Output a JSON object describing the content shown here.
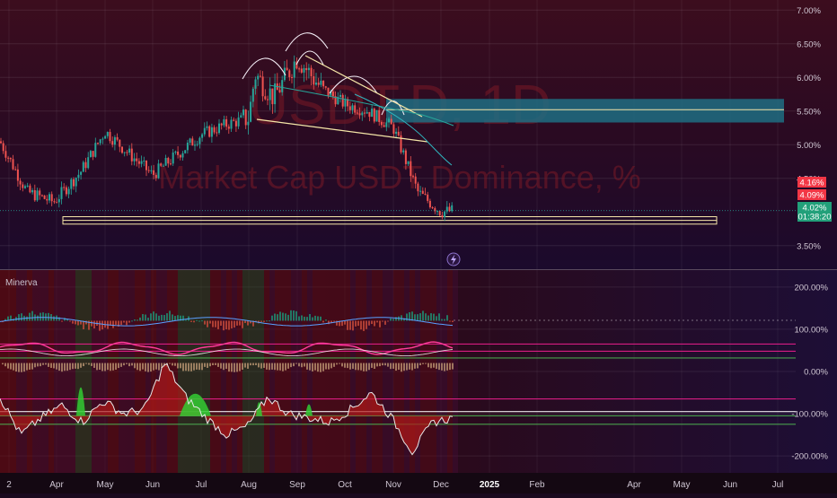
{
  "symbol": {
    "ticker": "USDT.D, 1D",
    "name": "Market Cap USDT Dominance, %"
  },
  "indicator": {
    "name": "Minerva"
  },
  "price_labels": {
    "high": "4.16%",
    "low": "4.09%",
    "last": "4.02%",
    "countdown": "01:38:20"
  },
  "colors": {
    "background_top": "#3a0d1f",
    "background_bottom": "#1a0a2a",
    "candle_up": "#26a69a",
    "candle_down": "#ef5350",
    "support_box": "#f5e6a8",
    "resistance_zone": "#1e6e82",
    "trend_line": "#f5e6a8",
    "pink_band": "#e91e8c",
    "green_level": "#4caf50"
  },
  "chart_data": [
    {
      "type": "candlestick",
      "title": "USDT.D, 1D",
      "subtitle": "Market Cap USDT Dominance, %",
      "x_tick_labels": [
        "2",
        "Apr",
        "May",
        "Jun",
        "Jul",
        "Aug",
        "Sep",
        "Oct",
        "Nov",
        "Dec",
        "2025",
        "Feb",
        "Apr",
        "May",
        "Jun",
        "Jul"
      ],
      "y_tick_labels": [
        "7.00%",
        "6.50%",
        "6.00%",
        "5.50%",
        "5.00%",
        "4.50%",
        "3.50%"
      ],
      "y_ticks": [
        7.0,
        6.5,
        6.0,
        5.5,
        5.0,
        4.5,
        3.5
      ],
      "ylim": [
        3.15,
        7.15
      ],
      "grid": true,
      "series": [
        {
          "x": [
            "Mar 02",
            "Mar 16",
            "Apr 01",
            "Apr 15",
            "May 01",
            "May 15",
            "Jun 01",
            "Jun 15",
            "Jul 01",
            "Jul 15",
            "Aug 01",
            "Aug 05",
            "Aug 15",
            "Sep 01",
            "Sep 15",
            "Oct 01",
            "Oct 15",
            "Nov 01",
            "Nov 15",
            "Dec 01",
            "Dec 08"
          ],
          "values": [
            5.05,
            4.3,
            4.15,
            4.6,
            5.2,
            4.85,
            4.55,
            4.85,
            5.15,
            5.3,
            5.4,
            6.05,
            5.7,
            6.3,
            5.85,
            5.6,
            5.5,
            5.25,
            4.3,
            4.0,
            4.02
          ]
        }
      ],
      "annotations": {
        "last_price": 4.02,
        "price_labels": [
          4.16,
          4.09,
          4.02
        ],
        "support_zone": [
          3.82,
          3.93
        ],
        "resistance_zone": [
          5.33,
          5.68
        ],
        "resistance_midline": 5.52
      }
    },
    {
      "type": "line",
      "title": "Minerva",
      "x_tick_labels": [
        "2",
        "Apr",
        "May",
        "Jun",
        "Jul",
        "Aug",
        "Sep",
        "Oct",
        "Nov",
        "Dec",
        "2025",
        "Feb",
        "Apr",
        "May",
        "Jun",
        "Jul"
      ],
      "y_tick_labels": [
        "200.00%",
        "100.00%",
        "0.00%",
        "-100.00%",
        "-200.00%"
      ],
      "y_ticks": [
        200,
        100,
        0,
        -100,
        -200
      ],
      "ylim": [
        -240,
        240
      ],
      "series": [
        {
          "values": [
            -60,
            -150,
            -110,
            -80,
            -120,
            -70,
            -100,
            -90,
            20,
            -60,
            -110,
            -150,
            -130,
            -60,
            -100,
            -110,
            -120,
            -90,
            -50,
            -110,
            -190,
            -120,
            -110
          ]
        }
      ],
      "annotations": {
        "horizontal_levels": [
          65,
          48,
          32,
          -65,
          -95,
          -105,
          -125
        ]
      }
    }
  ]
}
